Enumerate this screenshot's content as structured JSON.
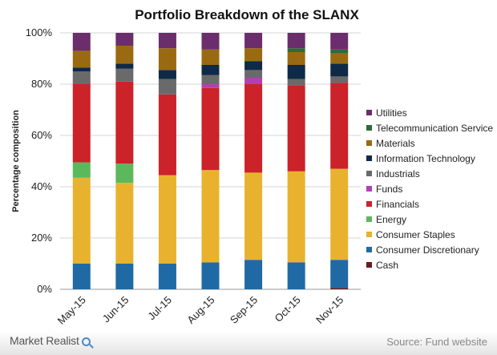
{
  "chart_data": {
    "type": "bar",
    "stacked": true,
    "title": "Portfolio Breakdown of the SLANX",
    "ylabel": "Percentage composition",
    "xlabel": "",
    "ylim": [
      0,
      100
    ],
    "yticks": [
      "0%",
      "20%",
      "40%",
      "60%",
      "80%",
      "100%"
    ],
    "categories": [
      "May-15",
      "Jun-15",
      "Jul-15",
      "Aug-15",
      "Sep-15",
      "Oct-15",
      "Nov-15"
    ],
    "grid": true,
    "legend_position": "right",
    "series": [
      {
        "name": "Cash",
        "color": "#6b1a1a",
        "values": [
          0,
          0,
          0,
          0,
          0,
          0,
          0.5
        ]
      },
      {
        "name": "Consumer Discretionary",
        "color": "#1f6aa5",
        "values": [
          10,
          10,
          10,
          10.5,
          11.5,
          10.5,
          11
        ]
      },
      {
        "name": "Consumer Staples",
        "color": "#e8b22e",
        "values": [
          33.5,
          31.5,
          34.5,
          36,
          34,
          35.5,
          35.5
        ]
      },
      {
        "name": "Energy",
        "color": "#5cb85c",
        "values": [
          6,
          7.5,
          0,
          0,
          0,
          0,
          0
        ]
      },
      {
        "name": "Financials",
        "color": "#cc2229",
        "values": [
          30.5,
          32,
          31.5,
          32,
          34.5,
          33.5,
          33.5
        ]
      },
      {
        "name": "Funds",
        "color": "#b43fb4",
        "values": [
          0,
          0,
          0,
          1.5,
          2.5,
          0,
          0
        ]
      },
      {
        "name": "Industrials",
        "color": "#6a6a6a",
        "values": [
          5,
          5,
          6,
          3.5,
          3,
          2.5,
          2.5
        ]
      },
      {
        "name": "Information Technology",
        "color": "#0e2a47",
        "values": [
          1.5,
          2,
          3.5,
          4,
          3.5,
          5.5,
          5
        ]
      },
      {
        "name": "Materials",
        "color": "#9a6a12",
        "values": [
          6.5,
          7,
          8.5,
          6,
          5,
          5,
          4
        ]
      },
      {
        "name": "Telecommunication Service",
        "color": "#2e6b3a",
        "values": [
          0,
          0,
          0,
          0,
          0,
          1.5,
          1.5
        ]
      },
      {
        "name": "Utilities",
        "color": "#6b2d6b",
        "values": [
          7,
          5,
          6,
          6.5,
          6,
          6,
          6.5
        ]
      }
    ]
  },
  "footer": {
    "brand": "Market Realist",
    "source": "Source: Fund website"
  }
}
